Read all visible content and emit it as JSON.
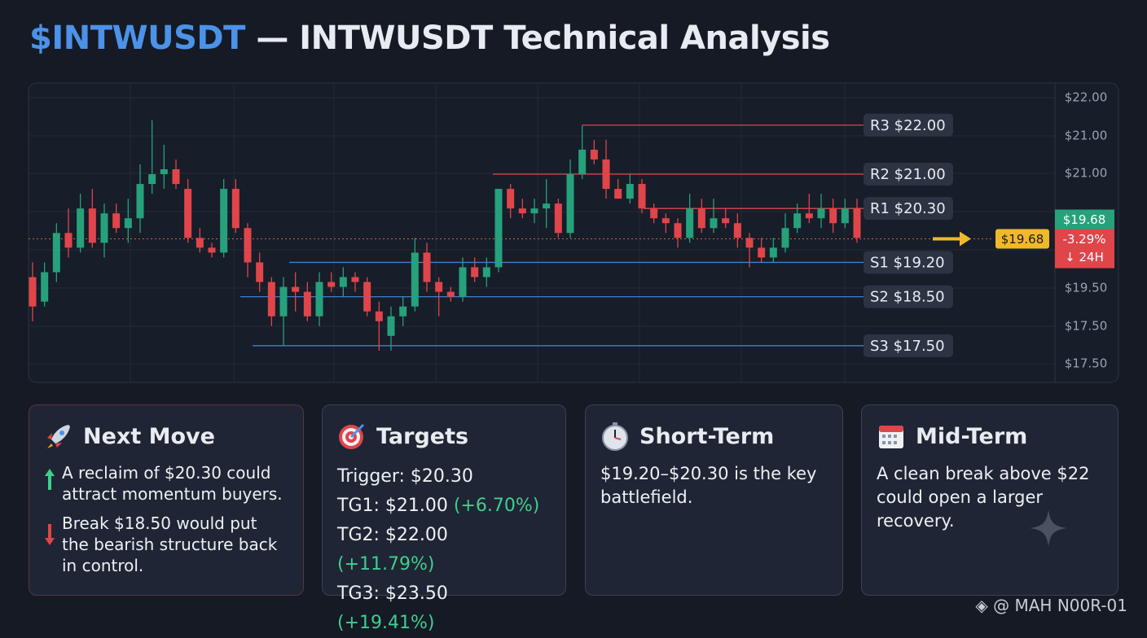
{
  "chart_data": {
    "type": "candlestick",
    "title_ticker": "$INTWUSDT",
    "title_rest": "— INTWUSDT Technical Analysis",
    "up_color": "#26a17b",
    "down_color": "#e0454a",
    "ylim": [
      16.75,
      22.81
    ],
    "open": [
      18.9,
      18.4,
      19.0,
      19.8,
      19.5,
      20.3,
      19.6,
      20.2,
      19.9,
      20.1,
      20.8,
      21.0,
      21.1,
      20.7,
      19.7,
      19.5,
      19.4,
      20.7,
      19.9,
      19.2,
      18.8,
      18.1,
      18.7,
      18.6,
      18.1,
      18.8,
      18.7,
      18.9,
      18.8,
      18.2,
      17.7,
      18.1,
      18.3,
      19.4,
      18.8,
      18.6,
      18.5,
      19.1,
      18.9,
      19.1,
      20.7,
      20.3,
      20.2,
      20.3,
      20.4,
      19.8,
      21.0,
      21.5,
      21.3,
      20.7,
      20.5,
      20.8,
      20.3,
      20.1,
      20.0,
      19.7,
      20.3,
      19.9,
      20.1,
      20.0,
      19.7,
      19.5,
      19.3,
      19.5,
      19.9,
      20.2,
      20.1,
      20.3,
      20.0,
      20.3
    ],
    "high": [
      19.2,
      19.2,
      20.0,
      20.3,
      20.6,
      20.7,
      20.4,
      20.4,
      20.5,
      21.2,
      22.1,
      21.6,
      21.3,
      20.9,
      19.9,
      19.6,
      20.9,
      20.9,
      20.0,
      19.4,
      18.9,
      18.9,
      19.0,
      18.8,
      19.0,
      19.0,
      19.1,
      19.0,
      18.9,
      18.4,
      18.3,
      18.5,
      19.7,
      19.6,
      18.9,
      18.7,
      19.3,
      19.3,
      19.3,
      20.7,
      20.8,
      20.5,
      20.5,
      20.9,
      20.5,
      21.3,
      22.0,
      21.7,
      21.7,
      20.9,
      21.0,
      20.9,
      20.4,
      20.2,
      20.1,
      20.6,
      20.5,
      20.5,
      20.3,
      20.2,
      19.8,
      19.7,
      19.7,
      20.2,
      20.4,
      20.6,
      20.6,
      20.5,
      20.5,
      20.5
    ],
    "low": [
      18.0,
      18.3,
      18.8,
      19.3,
      19.4,
      19.5,
      19.3,
      19.8,
      19.6,
      19.8,
      20.6,
      20.7,
      20.7,
      19.6,
      19.4,
      19.3,
      19.3,
      19.8,
      18.9,
      18.6,
      17.9,
      17.5,
      18.2,
      18.0,
      17.9,
      18.6,
      18.5,
      18.6,
      18.1,
      17.4,
      17.4,
      17.9,
      18.2,
      18.6,
      18.1,
      18.4,
      18.4,
      18.8,
      18.7,
      19.0,
      20.1,
      20.1,
      20.0,
      19.9,
      19.7,
      19.7,
      20.9,
      21.2,
      20.5,
      20.5,
      20.4,
      20.2,
      20.0,
      19.8,
      19.5,
      19.6,
      19.8,
      19.8,
      19.9,
      19.5,
      19.1,
      19.2,
      19.2,
      19.4,
      19.8,
      20.0,
      19.9,
      19.8,
      19.9,
      19.6
    ],
    "close": [
      18.3,
      19.0,
      19.8,
      19.5,
      20.3,
      19.6,
      20.2,
      19.9,
      20.1,
      20.8,
      21.0,
      21.1,
      20.8,
      19.7,
      19.5,
      19.4,
      20.7,
      19.9,
      19.2,
      18.8,
      18.1,
      18.7,
      18.6,
      18.1,
      18.8,
      18.7,
      18.9,
      18.8,
      18.2,
      18.0,
      18.1,
      18.3,
      19.4,
      18.8,
      18.6,
      18.5,
      19.1,
      18.9,
      19.1,
      20.7,
      20.3,
      20.2,
      20.3,
      20.4,
      19.8,
      21.0,
      21.5,
      21.3,
      20.7,
      20.5,
      20.8,
      20.3,
      20.1,
      20.0,
      19.7,
      20.3,
      19.9,
      20.1,
      20.0,
      19.7,
      19.5,
      19.3,
      19.5,
      19.9,
      20.2,
      20.1,
      20.3,
      20.0,
      20.3,
      19.7
    ],
    "price_axis_labels": [
      "$22.00",
      "$21.00",
      "$21.00",
      "$19.50",
      "$17.50",
      "$17.50"
    ],
    "levels": [
      {
        "value": 22.0,
        "label": "R3 $22.00",
        "color": "#e0454a"
      },
      {
        "value": 21.0,
        "label": "R2 $21.00",
        "color": "#e0454a"
      },
      {
        "value": 20.3,
        "label": "R1 $20.30",
        "color": "#e0454a"
      },
      {
        "value": 19.2,
        "label": "S1 $19.20",
        "color": "#3d7fd6"
      },
      {
        "value": 18.5,
        "label": "S2 $18.50",
        "color": "#3d7fd6"
      },
      {
        "value": 17.5,
        "label": "S3 $17.50",
        "color": "#3d7fd6"
      }
    ],
    "current": {
      "value": 19.68,
      "label": "$19.68",
      "change": -3.29,
      "change_label": "-3.29%",
      "period": "↓ 24H"
    }
  },
  "cards": [
    {
      "title": "Next Move",
      "items": [
        "A reclaim of $20.30 could attract momentum buyers.",
        "Break $18.50 would put the bearish structure back in control."
      ]
    },
    {
      "title": "Targets",
      "trigger": "Trigger: $20.30",
      "targets": [
        {
          "label": "TG1: $21.00",
          "change": "(+6.70%)"
        },
        {
          "label": "TG2: $22.00",
          "change": "(+11.79%)"
        },
        {
          "label": "TG3: $23.50",
          "change": "(+19.41%)"
        }
      ]
    },
    {
      "title": "Short-Term",
      "text": "$19.20–$20.30 is the key battlefield."
    },
    {
      "title": "Mid-Term",
      "text": "A clean break above $22 could open a larger recovery."
    }
  ],
  "watermark": "@ MAH N00R-01"
}
